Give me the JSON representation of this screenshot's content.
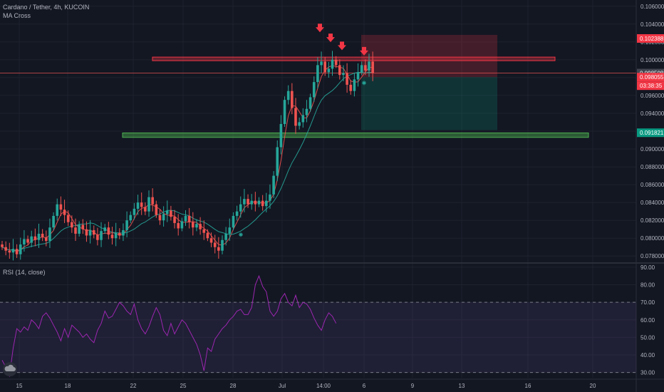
{
  "header": {
    "symbol_title": "Cardano / Tether, 4h, KUCOIN",
    "indicator_label": "MA Cross"
  },
  "rsi": {
    "label": "RSI (14, close)",
    "upper_band": 70,
    "lower_band": 30
  },
  "price_axis": {
    "ticks": [
      "0.106000",
      "0.104000",
      "0.102000",
      "0.100000",
      "0.098000",
      "0.096000",
      "0.094000",
      "0.092000",
      "0.090000",
      "0.088000",
      "0.086000",
      "0.084000",
      "0.082000",
      "0.080000",
      "0.078000"
    ],
    "tick_values": [
      0.106,
      0.104,
      0.102,
      0.1,
      0.098,
      0.096,
      0.094,
      0.092,
      0.09,
      0.088,
      0.086,
      0.084,
      0.082,
      0.08,
      0.078
    ]
  },
  "rsi_axis": {
    "ticks": [
      "90.00",
      "80.00",
      "70.00",
      "60.00",
      "50.00",
      "40.00",
      "30.00"
    ],
    "tick_values": [
      90,
      80,
      70,
      60,
      50,
      40,
      30
    ]
  },
  "time_axis": {
    "labels": [
      "15",
      "18",
      "22",
      "25",
      "28",
      "Jul",
      "14:00",
      "6",
      "9",
      "13",
      "16",
      "20"
    ]
  },
  "price_tags": {
    "target": "0.102388",
    "last_price": "0.098508",
    "entry": "0.098055",
    "countdown": "03:38:35",
    "support": "0.091821"
  },
  "colors": {
    "background": "#131722",
    "up": "#26a69a",
    "down": "#ef5350",
    "rsi_line": "#9c27b0",
    "resistance_zone": "#f23645",
    "support_zone": "#4caf50"
  },
  "chart_data": [
    {
      "type": "candlestick",
      "symbol": "Cardano / Tether",
      "timeframe": "4h",
      "exchange": "KUCOIN",
      "ylim": [
        0.0773,
        0.1067
      ],
      "x_labels": [
        "15",
        "18",
        "22",
        "25",
        "28",
        "Jul",
        "14:00",
        "6",
        "9",
        "13",
        "16",
        "20"
      ],
      "close": [
        0.079,
        0.0786,
        0.0784,
        0.0788,
        0.0782,
        0.0793,
        0.0799,
        0.0795,
        0.0802,
        0.0798,
        0.0805,
        0.0801,
        0.0797,
        0.0812,
        0.0825,
        0.0838,
        0.0832,
        0.0826,
        0.0818,
        0.0812,
        0.0805,
        0.0815,
        0.081,
        0.0803,
        0.0809,
        0.0804,
        0.0798,
        0.0808,
        0.0812,
        0.0804,
        0.08,
        0.0806,
        0.0803,
        0.0809,
        0.082,
        0.0826,
        0.0833,
        0.084,
        0.0835,
        0.083,
        0.0846,
        0.0838,
        0.0826,
        0.082,
        0.0827,
        0.0831,
        0.0824,
        0.0817,
        0.0811,
        0.0819,
        0.0825,
        0.0818,
        0.0812,
        0.0816,
        0.081,
        0.0806,
        0.08,
        0.0795,
        0.079,
        0.0786,
        0.0798,
        0.0805,
        0.0812,
        0.0825,
        0.083,
        0.0838,
        0.0844,
        0.0838,
        0.0842,
        0.0838,
        0.0842,
        0.0836,
        0.0842,
        0.0849,
        0.087,
        0.0902,
        0.0928,
        0.0955,
        0.0965,
        0.0946,
        0.0926,
        0.093,
        0.0938,
        0.0945,
        0.0958,
        0.0975,
        0.0994,
        0.0998,
        0.0986,
        0.099,
        0.1,
        0.0994,
        0.0983,
        0.0985,
        0.0972,
        0.0965,
        0.0978,
        0.0986,
        0.0994,
        0.0988,
        0.0998,
        0.0985
      ],
      "rsi": [
        37,
        33,
        28,
        44,
        55,
        53,
        56,
        54,
        60,
        58,
        55,
        62,
        64,
        61,
        57,
        53,
        48,
        55,
        50,
        57,
        55,
        53,
        50,
        52,
        49,
        47,
        54,
        58,
        65,
        61,
        62,
        66,
        70,
        68,
        65,
        63,
        69,
        60,
        55,
        52,
        56,
        62,
        67,
        63,
        54,
        51,
        58,
        52,
        56,
        60,
        58,
        54,
        50,
        46,
        40,
        31,
        44,
        42,
        49,
        52,
        55,
        57,
        60,
        62,
        65,
        66,
        63,
        63,
        67,
        80,
        85,
        79,
        76,
        65,
        62,
        65,
        72,
        75,
        70,
        68,
        74,
        67,
        70,
        69,
        66,
        61,
        57,
        54,
        60,
        64,
        62,
        58
      ]
    },
    {
      "type": "line",
      "name": "RSI (14, close)",
      "ylim": [
        27,
        92
      ]
    }
  ]
}
